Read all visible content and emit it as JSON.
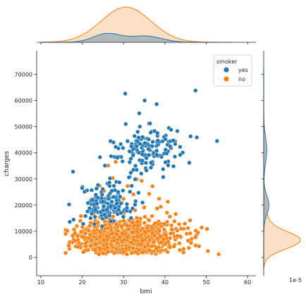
{
  "chart_data": {
    "type": "scatter",
    "kind": "jointplot",
    "xlabel": "bmi",
    "ylabel": "charges",
    "xlim": [
      9,
      62
    ],
    "ylim": [
      -7000,
      79000
    ],
    "xticks": [
      10,
      20,
      30,
      40,
      50,
      60
    ],
    "yticks": [
      0,
      10000,
      20000,
      30000,
      40000,
      50000,
      60000,
      70000
    ],
    "grid": false,
    "marginal_offset_text": "1e-5",
    "legend": {
      "title": "smoker",
      "placement": "top-right",
      "entries": [
        {
          "label": "yes",
          "color": "#1f77b4"
        },
        {
          "label": "no",
          "color": "#ff7f0e"
        }
      ]
    },
    "series": [
      {
        "key": "yes",
        "color": "#1f77b4",
        "clusters": [
          {
            "x_mean": 26,
            "x_sd": 3.2,
            "y_mean": 20000,
            "y_sd": 3500,
            "n": 150
          },
          {
            "x_mean": 35.5,
            "x_sd": 3.8,
            "y_mean": 41000,
            "y_sd": 4500,
            "n": 130
          }
        ],
        "points": [
          [
            30.4,
            62600
          ],
          [
            47.4,
            63800
          ],
          [
            35.1,
            60000
          ],
          [
            38.0,
            58600
          ],
          [
            33.8,
            55100
          ],
          [
            52.6,
            44500
          ],
          [
            17.8,
            32800
          ],
          [
            17.0,
            13600
          ],
          [
            36.4,
            51200
          ],
          [
            41.5,
            48800
          ],
          [
            43.0,
            48300
          ],
          [
            46.2,
            46300
          ],
          [
            44.3,
            40100
          ],
          [
            45.9,
            36200
          ],
          [
            42.0,
            44700
          ],
          [
            37.5,
            48300
          ],
          [
            27.0,
            38700
          ],
          [
            28.5,
            38100
          ],
          [
            25.5,
            35100
          ],
          [
            20.0,
            26500
          ],
          [
            22.3,
            25700
          ],
          [
            38.2,
            47500
          ],
          [
            40.1,
            45200
          ],
          [
            34.6,
            46000
          ],
          [
            32.4,
            33500
          ],
          [
            31.3,
            30600
          ],
          [
            29.0,
            28700
          ],
          [
            24.3,
            38300
          ],
          [
            47.7,
            45900
          ],
          [
            43.7,
            39200
          ]
        ]
      },
      {
        "key": "no",
        "color": "#ff7f0e",
        "clusters": [
          {
            "x_mean": 30.6,
            "x_sd": 6.0,
            "y_mean": 7500,
            "y_sd": 3600,
            "n": 900
          }
        ],
        "points": [
          [
            16.0,
            1700
          ],
          [
            53.0,
            1200
          ],
          [
            50.4,
            2400
          ],
          [
            48.0,
            9500
          ],
          [
            48.9,
            11400
          ],
          [
            47.4,
            7700
          ],
          [
            46.1,
            9200
          ],
          [
            44.8,
            12900
          ],
          [
            45.6,
            6400
          ],
          [
            40.5,
            17100
          ],
          [
            42.3,
            13800
          ],
          [
            38.6,
            22400
          ],
          [
            40.7,
            21300
          ],
          [
            37.0,
            27200
          ],
          [
            36.2,
            24300
          ],
          [
            34.4,
            29300
          ],
          [
            32.4,
            24100
          ],
          [
            33.2,
            29900
          ],
          [
            29.0,
            22800
          ],
          [
            26.3,
            35100
          ],
          [
            28.1,
            36500
          ],
          [
            31.0,
            27300
          ],
          [
            27.4,
            30300
          ],
          [
            24.2,
            27400
          ],
          [
            23.0,
            22600
          ],
          [
            25.3,
            25400
          ],
          [
            30.1,
            16900
          ],
          [
            35.0,
            19100
          ],
          [
            41.2,
            15600
          ],
          [
            43.9,
            11000
          ],
          [
            38.1,
            18700
          ],
          [
            36.9,
            15800
          ],
          [
            39.0,
            19400
          ],
          [
            42.6,
            16600
          ],
          [
            30.0,
            22400
          ]
        ]
      }
    ],
    "marginal_x": [
      {
        "key": "yes",
        "color": "#1f77b4",
        "fill": "#9aa9b3",
        "components": [
          {
            "mu": 26,
            "sd": 3.3,
            "w": 0.54
          },
          {
            "mu": 35.3,
            "sd": 3.9,
            "w": 0.46
          }
        ],
        "weight": 0.2
      },
      {
        "key": "no",
        "color": "#ff7f0e",
        "fill": "#fbd5b3",
        "components": [
          {
            "mu": 30.6,
            "sd": 6.0,
            "w": 1.0
          }
        ],
        "weight": 0.8
      }
    ],
    "marginal_y": [
      {
        "key": "yes",
        "color": "#1f77b4",
        "fill": "#9aa9b3",
        "components": [
          {
            "mu": 20000,
            "sd": 3600,
            "w": 0.55
          },
          {
            "mu": 41000,
            "sd": 5000,
            "w": 0.45
          }
        ],
        "weight": 0.2
      },
      {
        "key": "no",
        "color": "#ff7f0e",
        "fill": "#fbd5b3",
        "components": [
          {
            "mu": 6500,
            "sd": 3300,
            "w": 0.85
          },
          {
            "mu": 14000,
            "sd": 5500,
            "w": 0.15
          }
        ],
        "weight": 0.8
      }
    ]
  }
}
